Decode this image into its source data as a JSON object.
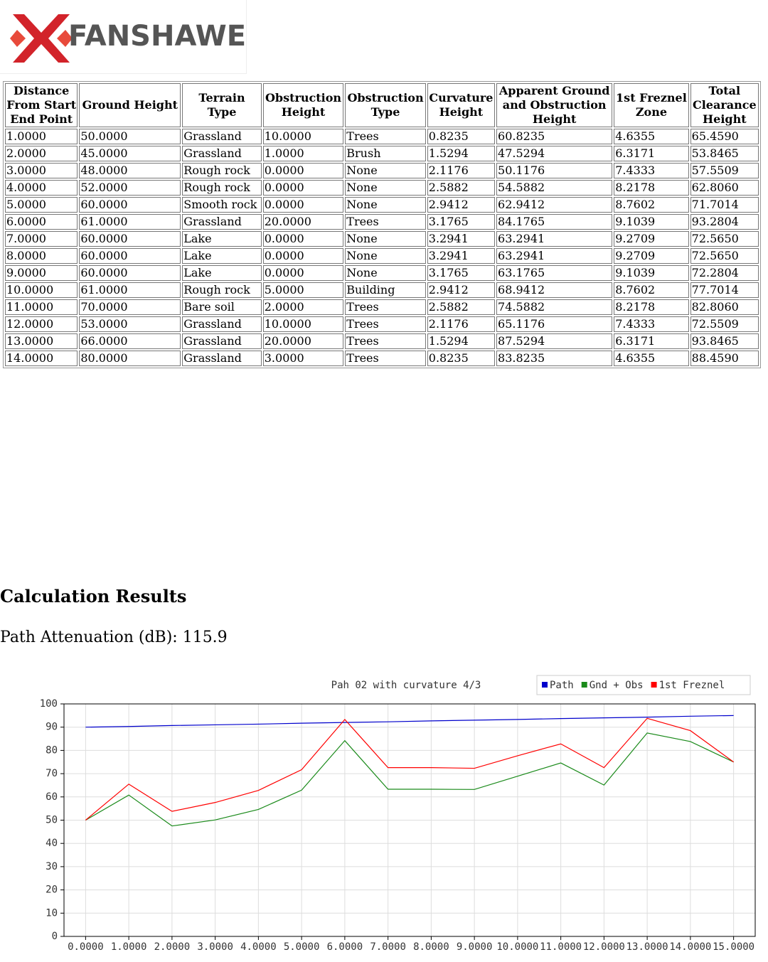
{
  "logo": {
    "text": "FANSHAWE"
  },
  "table": {
    "headers": [
      "Distance From Start End Point",
      "Ground Height",
      "Terrain Type",
      "Obstruction Height",
      "Obstruction Type",
      "Curvature Height",
      "Apparent Ground and Obstruction Height",
      "1st Freznel Zone",
      "Total Clearance Height"
    ],
    "rows": [
      [
        "1.0000",
        "50.0000",
        "Grassland",
        "10.0000",
        "Trees",
        "0.8235",
        "60.8235",
        "4.6355",
        "65.4590"
      ],
      [
        "2.0000",
        "45.0000",
        "Grassland",
        "1.0000",
        "Brush",
        "1.5294",
        "47.5294",
        "6.3171",
        "53.8465"
      ],
      [
        "3.0000",
        "48.0000",
        "Rough rock",
        "0.0000",
        "None",
        "2.1176",
        "50.1176",
        "7.4333",
        "57.5509"
      ],
      [
        "4.0000",
        "52.0000",
        "Rough rock",
        "0.0000",
        "None",
        "2.5882",
        "54.5882",
        "8.2178",
        "62.8060"
      ],
      [
        "5.0000",
        "60.0000",
        "Smooth rock",
        "0.0000",
        "None",
        "2.9412",
        "62.9412",
        "8.7602",
        "71.7014"
      ],
      [
        "6.0000",
        "61.0000",
        "Grassland",
        "20.0000",
        "Trees",
        "3.1765",
        "84.1765",
        "9.1039",
        "93.2804"
      ],
      [
        "7.0000",
        "60.0000",
        "Lake",
        "0.0000",
        "None",
        "3.2941",
        "63.2941",
        "9.2709",
        "72.5650"
      ],
      [
        "8.0000",
        "60.0000",
        "Lake",
        "0.0000",
        "None",
        "3.2941",
        "63.2941",
        "9.2709",
        "72.5650"
      ],
      [
        "9.0000",
        "60.0000",
        "Lake",
        "0.0000",
        "None",
        "3.1765",
        "63.1765",
        "9.1039",
        "72.2804"
      ],
      [
        "10.0000",
        "61.0000",
        "Rough rock",
        "5.0000",
        "Building",
        "2.9412",
        "68.9412",
        "8.7602",
        "77.7014"
      ],
      [
        "11.0000",
        "70.0000",
        "Bare soil",
        "2.0000",
        "Trees",
        "2.5882",
        "74.5882",
        "8.2178",
        "82.8060"
      ],
      [
        "12.0000",
        "53.0000",
        "Grassland",
        "10.0000",
        "Trees",
        "2.1176",
        "65.1176",
        "7.4333",
        "72.5509"
      ],
      [
        "13.0000",
        "66.0000",
        "Grassland",
        "20.0000",
        "Trees",
        "1.5294",
        "87.5294",
        "6.3171",
        "93.8465"
      ],
      [
        "14.0000",
        "80.0000",
        "Grassland",
        "3.0000",
        "Trees",
        "0.8235",
        "83.8235",
        "4.6355",
        "88.4590"
      ]
    ]
  },
  "results": {
    "heading": "Calculation Results",
    "attenuation": "Path Attenuation (dB): 115.9"
  },
  "chart_data": {
    "type": "line",
    "title": "Pah 02 with curvature 4/3",
    "x": [
      0,
      1,
      2,
      3,
      4,
      5,
      6,
      7,
      8,
      9,
      10,
      11,
      12,
      13,
      14,
      15
    ],
    "series": [
      {
        "name": "Path",
        "color": "#0000cc",
        "values": [
          90.0,
          90.3,
          90.7,
          91.0,
          91.3,
          91.7,
          92.0,
          92.3,
          92.7,
          93.0,
          93.3,
          93.7,
          94.0,
          94.3,
          94.7,
          95.0
        ]
      },
      {
        "name": "Gnd + Obs",
        "color": "#1a8a1a",
        "values": [
          50,
          60.8,
          47.5,
          50.1,
          54.6,
          62.9,
          84.2,
          63.3,
          63.3,
          63.2,
          68.9,
          74.6,
          65.1,
          87.5,
          83.8,
          75
        ]
      },
      {
        "name": "1st Freznel",
        "color": "#ff0000",
        "values": [
          50,
          65.5,
          53.8,
          57.6,
          62.8,
          71.7,
          93.3,
          72.6,
          72.6,
          72.3,
          77.7,
          82.8,
          72.6,
          93.8,
          88.5,
          75
        ]
      }
    ],
    "xlim": [
      -0.5,
      15.5
    ],
    "ylim": [
      0,
      100
    ],
    "xticks": [
      {
        "value": 0,
        "label": "0.0000"
      },
      {
        "value": 1,
        "label": "1.0000"
      },
      {
        "value": 2,
        "label": "2.0000"
      },
      {
        "value": 3,
        "label": "3.0000"
      },
      {
        "value": 4,
        "label": "4.0000"
      },
      {
        "value": 5,
        "label": "5.0000"
      },
      {
        "value": 6,
        "label": "6.0000"
      },
      {
        "value": 7,
        "label": "7.0000"
      },
      {
        "value": 8,
        "label": "8.0000"
      },
      {
        "value": 9,
        "label": "9.0000"
      },
      {
        "value": 10,
        "label": "10.0000"
      },
      {
        "value": 11,
        "label": "11.0000"
      },
      {
        "value": 12,
        "label": "12.0000"
      },
      {
        "value": 13,
        "label": "13.0000"
      },
      {
        "value": 14,
        "label": "14.0000"
      },
      {
        "value": 15,
        "label": "15.0000"
      }
    ],
    "yticks": [
      0,
      10,
      20,
      30,
      40,
      50,
      60,
      70,
      80,
      90,
      100
    ],
    "grid": true
  }
}
